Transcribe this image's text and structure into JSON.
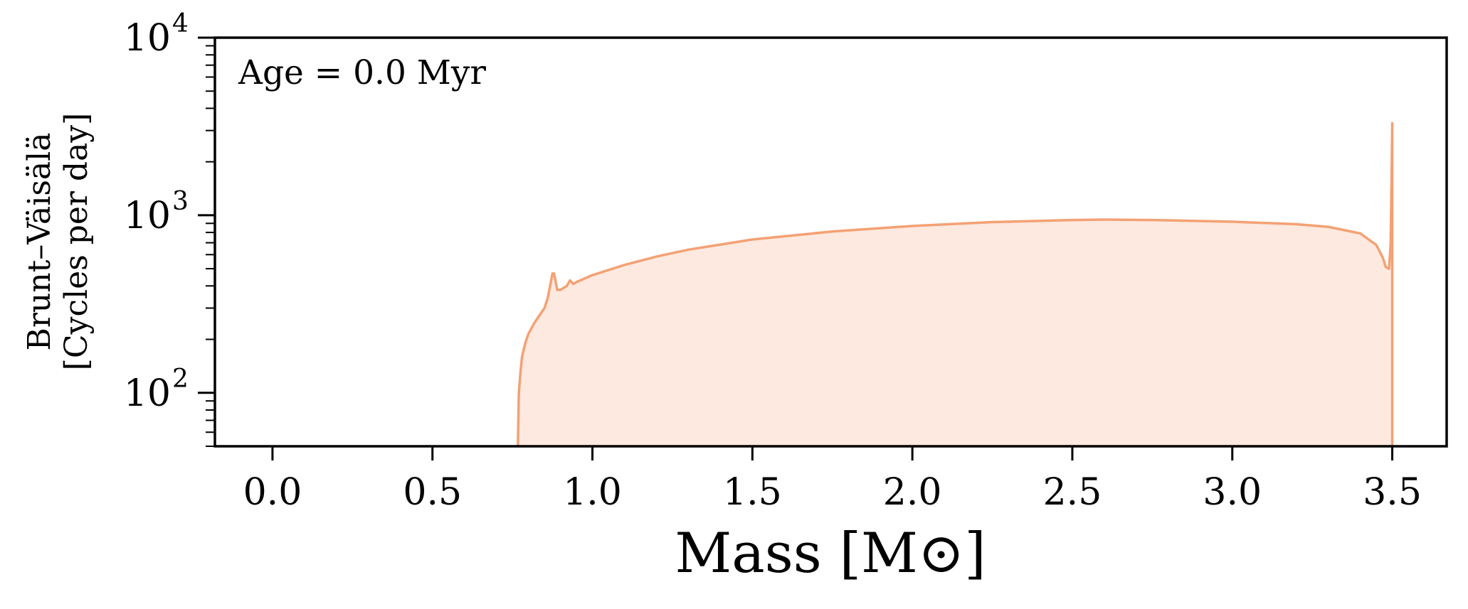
{
  "chart_data": {
    "type": "area",
    "annotation": "Age = 0.0 Myr",
    "xlabel": "Mass [M⊙]",
    "ylabel_lines": [
      "Brunt–Väisälä",
      "[Cycles per day]"
    ],
    "xlim": [
      -0.18,
      3.67
    ],
    "ylim": [
      50,
      10000
    ],
    "yscale": "log",
    "x_ticks": [
      0.0,
      0.5,
      1.0,
      1.5,
      2.0,
      2.5,
      3.0,
      3.5
    ],
    "x_tick_labels": [
      "0.0",
      "0.5",
      "1.0",
      "1.5",
      "2.0",
      "2.5",
      "3.0",
      "3.5"
    ],
    "y_ticks": [
      100,
      1000,
      10000
    ],
    "y_tick_labels": [
      {
        "base": "10",
        "exp": "2"
      },
      {
        "base": "10",
        "exp": "3"
      },
      {
        "base": "10",
        "exp": "4"
      }
    ],
    "grid": false,
    "colors": {
      "line": "#f4a174",
      "fill": "#fde9df"
    },
    "series": [
      {
        "x": [
          0.767,
          0.77,
          0.775,
          0.78,
          0.79,
          0.8,
          0.82,
          0.85,
          0.86,
          0.87,
          0.875,
          0.88,
          0.89,
          0.9,
          0.92,
          0.93,
          0.935,
          0.94,
          0.95,
          1.0,
          1.1,
          1.2,
          1.3,
          1.5,
          1.75,
          2.0,
          2.25,
          2.5,
          2.6,
          2.75,
          3.0,
          3.2,
          3.3,
          3.4,
          3.45,
          3.47,
          3.48,
          3.49,
          3.495,
          3.498,
          3.5,
          3.5
        ],
        "y": [
          50,
          100,
          130,
          160,
          190,
          215,
          250,
          300,
          340,
          420,
          470,
          470,
          380,
          380,
          400,
          430,
          420,
          410,
          420,
          460,
          525,
          585,
          640,
          730,
          810,
          870,
          915,
          940,
          945,
          940,
          920,
          890,
          860,
          790,
          680,
          580,
          510,
          500,
          700,
          1700,
          3300,
          50
        ]
      }
    ]
  }
}
